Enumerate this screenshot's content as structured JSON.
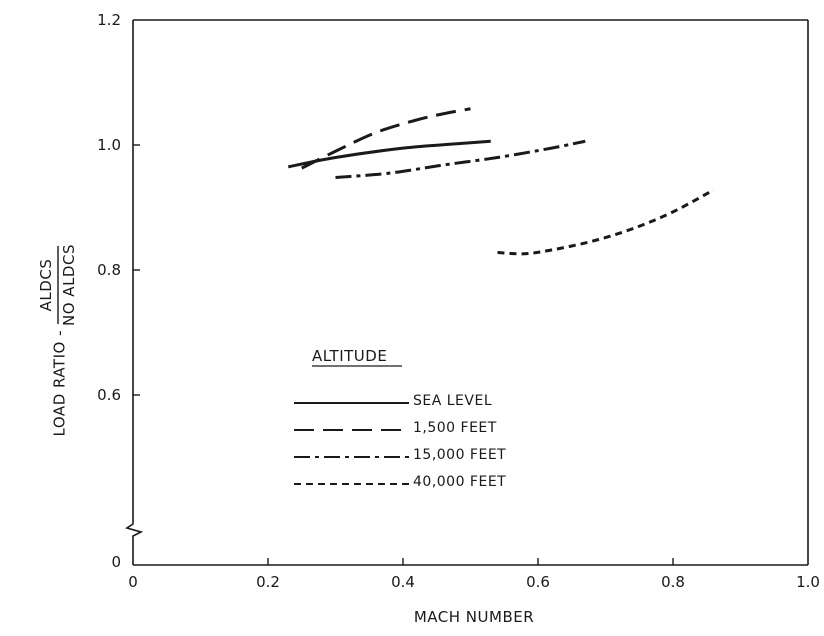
{
  "chart_data": {
    "type": "line",
    "xlabel": "MACH NUMBER",
    "ylabel_prefix": "LOAD RATIO -",
    "ylabel_numerator": "ALDCS",
    "ylabel_denominator": "NO ALDCS",
    "xlim": [
      0,
      1.0
    ],
    "ylim": [
      0.4,
      1.2
    ],
    "y_axis_break": true,
    "grid": false,
    "legend_title": "ALTITUDE",
    "legend_position": "lower-center",
    "xticks": [
      {
        "value": 0,
        "label": "0"
      },
      {
        "value": 0.2,
        "label": "0.2"
      },
      {
        "value": 0.4,
        "label": "0.4"
      },
      {
        "value": 0.6,
        "label": "0.6"
      },
      {
        "value": 0.8,
        "label": "0.8"
      },
      {
        "value": 1.0,
        "label": "1.0"
      }
    ],
    "yticks": [
      {
        "value": 0.6,
        "label": "0.6"
      },
      {
        "value": 0.8,
        "label": "0.8"
      },
      {
        "value": 1.0,
        "label": "1.0"
      },
      {
        "value": 1.2,
        "label": "1.2"
      }
    ],
    "y_zero_label": "0",
    "series": [
      {
        "name": "SEA LEVEL",
        "line_style": "solid",
        "x": [
          0.23,
          0.3,
          0.4,
          0.48,
          0.53
        ],
        "y": [
          0.965,
          0.98,
          0.995,
          1.002,
          1.006
        ]
      },
      {
        "name": "1,500 FEET",
        "line_style": "long-dash",
        "x": [
          0.25,
          0.3,
          0.36,
          0.42,
          0.46,
          0.5
        ],
        "y": [
          0.963,
          0.99,
          1.02,
          1.04,
          1.05,
          1.058
        ]
      },
      {
        "name": "15,000 FEET",
        "line_style": "dash-dot",
        "x": [
          0.3,
          0.38,
          0.46,
          0.54,
          0.62,
          0.67
        ],
        "y": [
          0.948,
          0.955,
          0.968,
          0.98,
          0.995,
          1.006
        ]
      },
      {
        "name": "40,000 FEET",
        "line_style": "short-dash",
        "x": [
          0.54,
          0.58,
          0.62,
          0.68,
          0.74,
          0.8,
          0.86
        ],
        "y": [
          0.828,
          0.826,
          0.832,
          0.846,
          0.866,
          0.893,
          0.928
        ]
      }
    ]
  }
}
